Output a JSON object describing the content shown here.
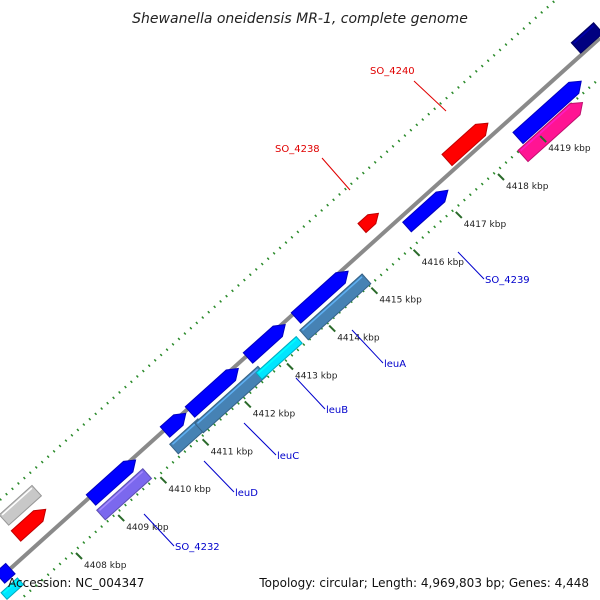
{
  "title": "Shewanella oneidensis MR-1, complete genome",
  "footer": {
    "accession": "Accession: NC_004347",
    "summary": "Topology: circular; Length: 4,969,803 bp; Genes: 4,448"
  },
  "colors": {
    "backbone": "#888888",
    "ticks": "#2a8a2a",
    "label_red": "#e00000",
    "label_blue": "#0000cc",
    "gene_blue": "#0000ff",
    "gene_red": "#ff0000",
    "gene_steel": "#4682b4",
    "gene_cyan": "#00e5ff",
    "gene_purple": "#7b68ee",
    "gene_pink": "#ff1493",
    "gene_gray": "#c8c8c8",
    "gene_navy": "#000080"
  },
  "ticks": [
    {
      "label": "4408 kbp"
    },
    {
      "label": "4409 kbp"
    },
    {
      "label": "4410 kbp"
    },
    {
      "label": "4411 kbp"
    },
    {
      "label": "4412 kbp"
    },
    {
      "label": "4413 kbp"
    },
    {
      "label": "4414 kbp"
    },
    {
      "label": "4415 kbp"
    },
    {
      "label": "4416 kbp"
    },
    {
      "label": "4417 kbp"
    },
    {
      "label": "4418 kbp"
    },
    {
      "label": "4419 kbp"
    }
  ],
  "gene_labels": [
    {
      "text": "SO_4240",
      "color": "red"
    },
    {
      "text": "SO_4238",
      "color": "red"
    },
    {
      "text": "SO_4239",
      "color": "blue"
    },
    {
      "text": "leuA",
      "color": "blue"
    },
    {
      "text": "leuB",
      "color": "blue"
    },
    {
      "text": "leuC",
      "color": "blue"
    },
    {
      "text": "leuD",
      "color": "blue"
    },
    {
      "text": "SO_4232",
      "color": "blue"
    }
  ]
}
